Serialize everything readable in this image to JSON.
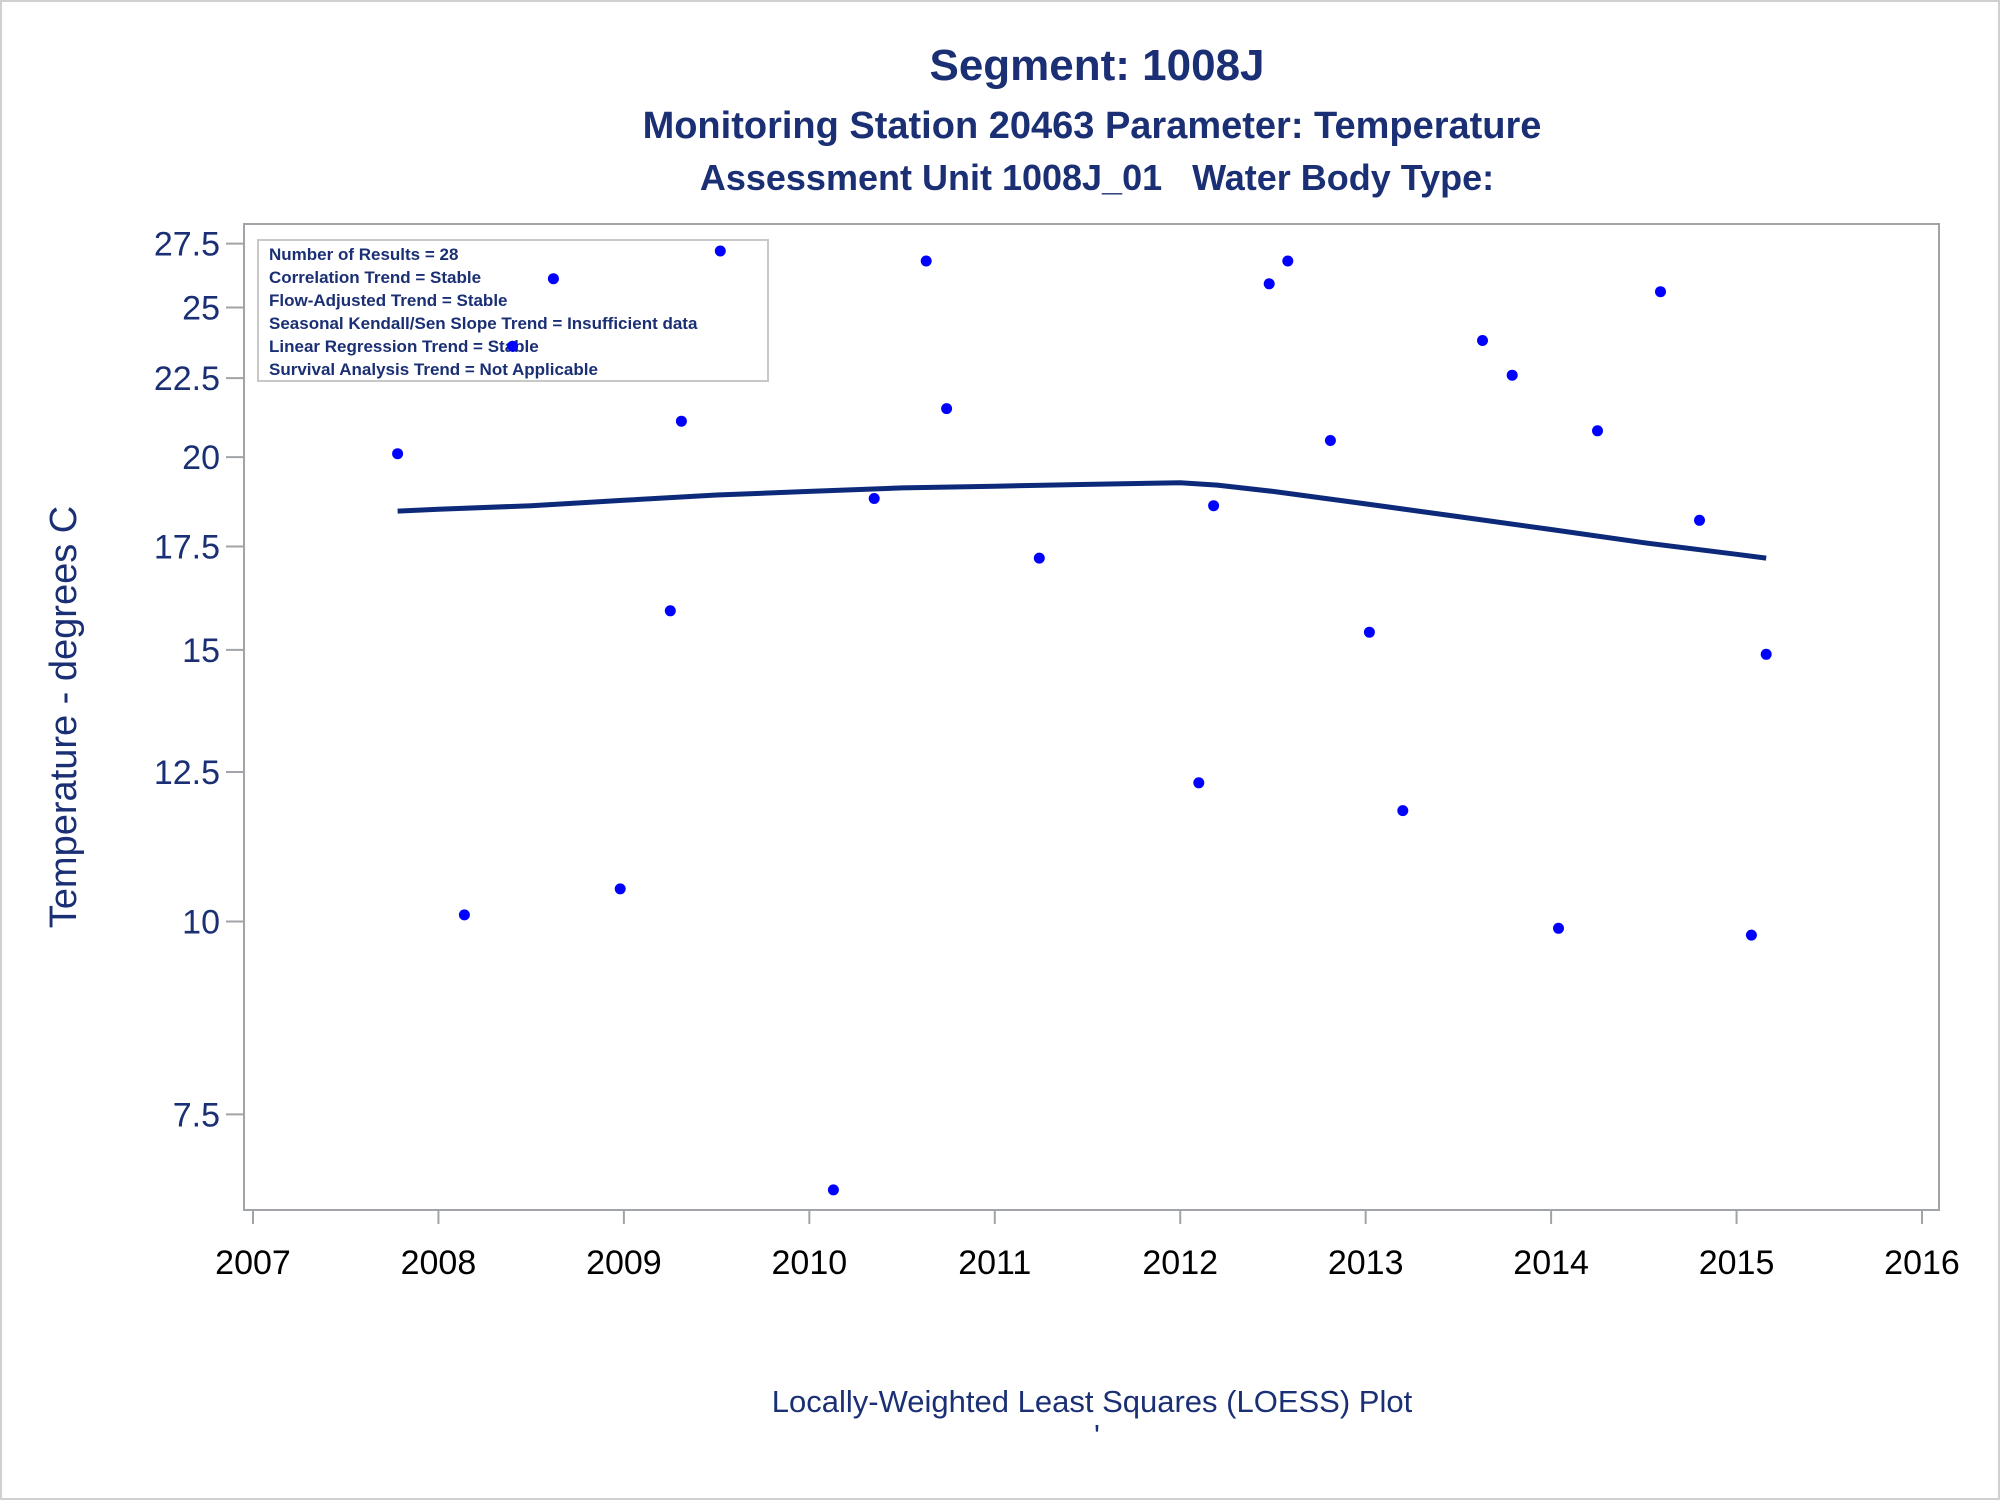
{
  "colors": {
    "text": "#1a2f74",
    "points": "#0000ff",
    "curve": "#0d2a7a",
    "frame": "#a0a4a8"
  },
  "chart_data": {
    "type": "scatter",
    "title": "Segment: 1008J",
    "subtitle1": "Monitoring Station 20463 Parameter: Temperature",
    "subtitle2": "Assessment Unit 1008J_01   Water Body Type:",
    "ylabel": "Temperature - degrees C",
    "xlabel": "",
    "footnote": "Locally-Weighted Least Squares (LOESS) Plot",
    "footnote2": "'",
    "y_scale": "log",
    "xlim": [
      2007,
      2016
    ],
    "ylim": [
      6.6,
      27.9
    ],
    "x_ticks": [
      2007,
      2008,
      2009,
      2010,
      2011,
      2012,
      2013,
      2014,
      2015,
      2016
    ],
    "y_ticks": [
      7.5,
      10,
      12.5,
      15,
      17.5,
      20,
      22.5,
      25,
      27.5
    ],
    "inset": [
      "Number of Results = 28",
      "Correlation Trend = Stable",
      "Flow-Adjusted Trend = Stable",
      "Seasonal Kendall/Sen Slope Trend = Insufficient data",
      "Linear Regression Trend = Stable",
      "Survival Analysis Trend = Not Applicable"
    ],
    "series": [
      {
        "type": "scatter",
        "x": [
          2007.78,
          2008.14,
          2008.4,
          2008.62,
          2008.98,
          2009.25,
          2009.31,
          2009.52,
          2010.13,
          2010.35,
          2010.63,
          2010.74,
          2011.24,
          2012.1,
          2012.18,
          2012.48,
          2012.58,
          2012.81,
          2013.02,
          2013.2,
          2013.63,
          2013.79,
          2014.04,
          2014.25,
          2014.59,
          2014.8,
          2015.08,
          2015.16
        ],
        "y": [
          20.1,
          10.1,
          23.6,
          26.1,
          10.5,
          15.9,
          21.1,
          27.2,
          6.7,
          18.8,
          26.8,
          21.5,
          17.2,
          12.3,
          18.6,
          25.9,
          26.8,
          20.5,
          15.4,
          11.8,
          23.8,
          22.6,
          9.9,
          20.8,
          25.6,
          18.2,
          9.8,
          14.9
        ]
      },
      {
        "type": "line",
        "x": [
          2007.78,
          2008.0,
          2008.5,
          2009.0,
          2009.5,
          2010.0,
          2010.5,
          2011.0,
          2011.5,
          2012.0,
          2012.2,
          2012.5,
          2013.0,
          2013.5,
          2014.0,
          2014.5,
          2015.0,
          2015.16
        ],
        "y": [
          18.45,
          18.5,
          18.6,
          18.75,
          18.9,
          19.0,
          19.1,
          19.15,
          19.2,
          19.25,
          19.18,
          19.0,
          18.65,
          18.3,
          17.95,
          17.6,
          17.3,
          17.2
        ]
      }
    ]
  }
}
